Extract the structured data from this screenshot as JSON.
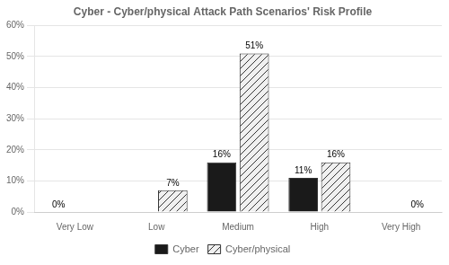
{
  "chart_data": {
    "type": "bar",
    "title": "Cyber - Cyber/physical Attack Path Scenarios' Risk Profile",
    "categories": [
      "Very Low",
      "Low",
      "Medium",
      "High",
      "Very High"
    ],
    "series": [
      {
        "name": "Cyber",
        "color": "#1a1a1a",
        "values": [
          0,
          0,
          16,
          11,
          0
        ],
        "value_labels": [
          "0%",
          null,
          "16%",
          "11%",
          null
        ]
      },
      {
        "name": "Cyber/physical",
        "color": "#f0f0f0",
        "values": [
          0,
          7,
          51,
          16,
          0
        ],
        "value_labels": [
          null,
          "7%",
          "51%",
          "16%",
          "0%"
        ]
      }
    ],
    "ylim": [
      0,
      60
    ],
    "yticks": [
      {
        "value": 0,
        "label": "0%"
      },
      {
        "value": 10,
        "label": "10%"
      },
      {
        "value": 20,
        "label": "20%"
      },
      {
        "value": 30,
        "label": "30%"
      },
      {
        "value": 40,
        "label": "40%"
      },
      {
        "value": 50,
        "label": "50%"
      },
      {
        "value": 60,
        "label": "60%"
      }
    ],
    "grid": true,
    "legend": "bottom",
    "data_labels": true
  }
}
